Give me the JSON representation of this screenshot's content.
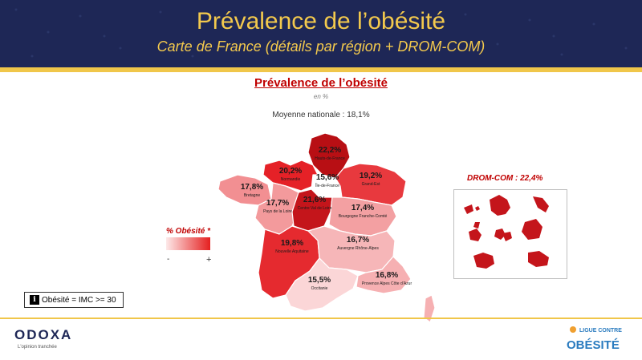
{
  "header": {
    "title": "Prévalence de l’obésité",
    "subtitle": "Carte de France (détails par région + DROM-COM)"
  },
  "map": {
    "title": "Prévalence de l’obésité",
    "unit": "en %",
    "national_average": "Moyenne nationale : 18,1%",
    "regions": [
      {
        "value": "22,2%",
        "name": "Hauts-de-France",
        "color": "#b80f14"
      },
      {
        "value": "20,2%",
        "name": "Normandie",
        "color": "#e52127"
      },
      {
        "value": "15,6%",
        "name": "Île-de-France",
        "color": "#ffffff"
      },
      {
        "value": "19,2%",
        "name": "Grand-Est",
        "color": "#e8393e"
      },
      {
        "value": "17,8%",
        "name": "Bretagne",
        "color": "#f28f92"
      },
      {
        "value": "17,7%",
        "name": "Pays de la Loire",
        "color": "#f39a9c"
      },
      {
        "value": "21,6%",
        "name": "Centre Val de Loire",
        "color": "#c4151b"
      },
      {
        "value": "17,4%",
        "name": "Bourgogne Franche-Comté",
        "color": "#f3a0a2"
      },
      {
        "value": "19,8%",
        "name": "Nouvelle Aquitaine",
        "color": "#e52a2f"
      },
      {
        "value": "16,7%",
        "name": "Auvergne Rhône-Alpes",
        "color": "#f6b6b8"
      },
      {
        "value": "15,5%",
        "name": "Occitanie",
        "color": "#fbd6d7"
      },
      {
        "value": "16,8%",
        "name": "Provence Alpes Côte d’Azur",
        "color": "#f6b0b2"
      }
    ],
    "legend": {
      "title": "% Obésité *",
      "min_label": "-",
      "max_label": "+",
      "color_low": "#fde9e9",
      "color_high": "#e51f1f"
    },
    "drom_com": {
      "title": "DROM-COM : 22,4%",
      "color": "#c4151b"
    }
  },
  "info": {
    "icon": "info-icon",
    "text": "Obésité = IMC >= 30"
  },
  "footer": {
    "odoxa_logo": "ODOXA",
    "odoxa_tagline": "L'opinion tranchée",
    "lco_logo_top": "LIGUE CONTRE",
    "lco_logo_main": "OBÉSITÉ"
  },
  "colors": {
    "navy": "#1e2756",
    "gold": "#f0c64a",
    "red": "#c00000"
  }
}
